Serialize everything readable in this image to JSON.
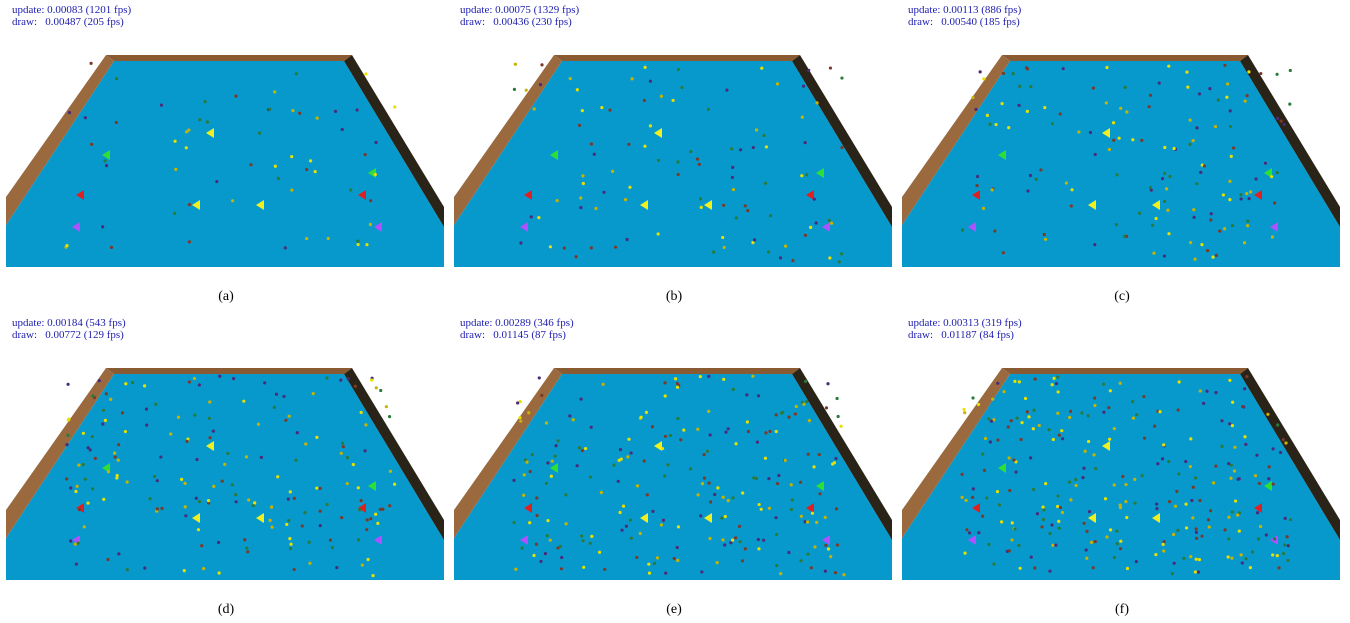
{
  "panels": [
    {
      "update": "update: 0.00083 (1201 fps)",
      "draw": "draw:   0.00487 (205 fps)",
      "caption": "(a)"
    },
    {
      "update": "update: 0.00075 (1329 fps)",
      "draw": "draw:   0.00436 (230 fps)",
      "caption": "(b)"
    },
    {
      "update": "update: 0.00113 (886 fps)",
      "draw": "draw:   0.00540 (185 fps)",
      "caption": "(c)"
    },
    {
      "update": "update: 0.00184 (543 fps)",
      "draw": "draw:   0.00772 (129 fps)",
      "caption": "(d)"
    },
    {
      "update": "update: 0.00289 (346 fps)",
      "draw": "draw:   0.01145 (87 fps)",
      "caption": "(e)"
    },
    {
      "update": "update: 0.00313 (319 fps)",
      "draw": "draw:   0.01187 (84 fps)",
      "caption": "(f)"
    }
  ]
}
